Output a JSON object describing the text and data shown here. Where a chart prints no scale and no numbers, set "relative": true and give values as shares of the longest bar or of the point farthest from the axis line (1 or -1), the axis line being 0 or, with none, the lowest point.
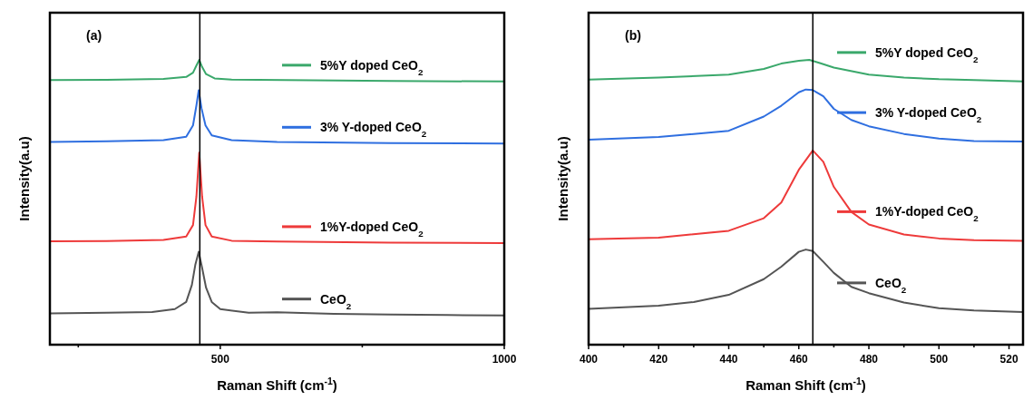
{
  "chart_data": [
    {
      "type": "line",
      "title": "(a)",
      "xlabel": "Raman Shift (cm$^{-1}$)",
      "ylabel": "Intensity(a.u)",
      "relative": true,
      "legend": "right",
      "xlim": [
        200,
        1000
      ],
      "xticks": [
        {
          "value": 250,
          "label": null
        },
        500,
        {
          "value": 750,
          "label": null
        },
        1000
      ],
      "ref_lines": [
        {
          "axis": "x",
          "value": 464,
          "color": "#000000"
        }
      ],
      "series": [
        {
          "name": "5%Y doped CeO$_{2}$",
          "color": "#3aa86b",
          "x": [
            200,
            300,
            400,
            440,
            452,
            458,
            463,
            468,
            475,
            490,
            520,
            800,
            1000
          ],
          "values": [
            0.929,
            0.93,
            0.933,
            0.94,
            0.955,
            0.98,
            1.0,
            0.975,
            0.95,
            0.935,
            0.931,
            0.926,
            0.924
          ]
        },
        {
          "name": "3% Y-doped CeO$_{2}$",
          "color": "#2f6fe0",
          "x": [
            200,
            300,
            400,
            440,
            452,
            458,
            462,
            467,
            474,
            485,
            520,
            600,
            800,
            1000
          ],
          "values": [
            0.712,
            0.714,
            0.718,
            0.73,
            0.77,
            0.84,
            0.893,
            0.83,
            0.77,
            0.735,
            0.718,
            0.712,
            0.708,
            0.706
          ]
        },
        {
          "name": "1%Y-doped CeO$_{2}$",
          "color": "#ee3a3a",
          "x": [
            200,
            300,
            400,
            440,
            452,
            458,
            463,
            468,
            474,
            485,
            520,
            600,
            800,
            1000
          ],
          "values": [
            0.363,
            0.364,
            0.368,
            0.38,
            0.42,
            0.52,
            0.674,
            0.52,
            0.42,
            0.38,
            0.365,
            0.362,
            0.358,
            0.357
          ]
        },
        {
          "name": "CeO$_{2}$",
          "color": "#555555",
          "x": [
            200,
            300,
            380,
            420,
            440,
            450,
            456,
            462,
            468,
            475,
            485,
            500,
            550,
            600,
            700,
            800,
            900,
            1000
          ],
          "values": [
            0.11,
            0.112,
            0.115,
            0.125,
            0.15,
            0.21,
            0.28,
            0.326,
            0.27,
            0.2,
            0.15,
            0.125,
            0.112,
            0.114,
            0.108,
            0.106,
            0.104,
            0.103
          ]
        }
      ]
    },
    {
      "type": "line",
      "title": "(b)",
      "xlabel": "Raman Shift (cm$^{-1}$)",
      "ylabel": "Intensity(a.u)",
      "relative": true,
      "legend": "right",
      "xlim": [
        400,
        524
      ],
      "xticks": [
        400,
        {
          "value": 410,
          "label": null
        },
        420,
        {
          "value": 430,
          "label": null
        },
        440,
        {
          "value": 450,
          "label": null
        },
        460,
        {
          "value": 470,
          "label": null
        },
        480,
        {
          "value": 490,
          "label": null
        },
        500,
        {
          "value": 510,
          "label": null
        },
        520
      ],
      "ref_lines": [
        {
          "axis": "x",
          "value": 464,
          "color": "#000000"
        }
      ],
      "series": [
        {
          "name": "5%Y doped CeO$_{2}$",
          "color": "#3aa86b",
          "x": [
            400,
            420,
            440,
            450,
            455,
            460,
            463,
            466,
            470,
            480,
            490,
            500,
            510,
            524
          ],
          "values": [
            0.931,
            0.938,
            0.948,
            0.968,
            0.987,
            0.997,
            1.0,
            0.989,
            0.973,
            0.948,
            0.938,
            0.932,
            0.929,
            0.924
          ]
        },
        {
          "name": "3% Y-doped CeO$_{2}$",
          "color": "#2f6fe0",
          "x": [
            400,
            420,
            440,
            450,
            455,
            460,
            462,
            464,
            467,
            470,
            475,
            480,
            490,
            500,
            510,
            524
          ],
          "values": [
            0.72,
            0.729,
            0.751,
            0.801,
            0.839,
            0.886,
            0.896,
            0.894,
            0.872,
            0.828,
            0.789,
            0.767,
            0.74,
            0.724,
            0.715,
            0.713
          ]
        },
        {
          "name": "1%Y-doped CeO$_{2}$",
          "color": "#ee3a3a",
          "x": [
            400,
            420,
            440,
            450,
            455,
            460,
            464,
            467,
            470,
            475,
            480,
            490,
            500,
            510,
            524
          ],
          "values": [
            0.37,
            0.376,
            0.4,
            0.444,
            0.499,
            0.614,
            0.682,
            0.642,
            0.554,
            0.466,
            0.422,
            0.387,
            0.373,
            0.367,
            0.365
          ]
        },
        {
          "name": "CeO$_{2}$",
          "color": "#555555",
          "x": [
            400,
            420,
            430,
            440,
            450,
            455,
            460,
            462,
            464,
            467,
            470,
            475,
            480,
            490,
            500,
            510,
            524
          ],
          "values": [
            0.126,
            0.137,
            0.15,
            0.175,
            0.23,
            0.274,
            0.326,
            0.334,
            0.329,
            0.291,
            0.252,
            0.203,
            0.181,
            0.148,
            0.128,
            0.12,
            0.115
          ]
        }
      ]
    }
  ]
}
